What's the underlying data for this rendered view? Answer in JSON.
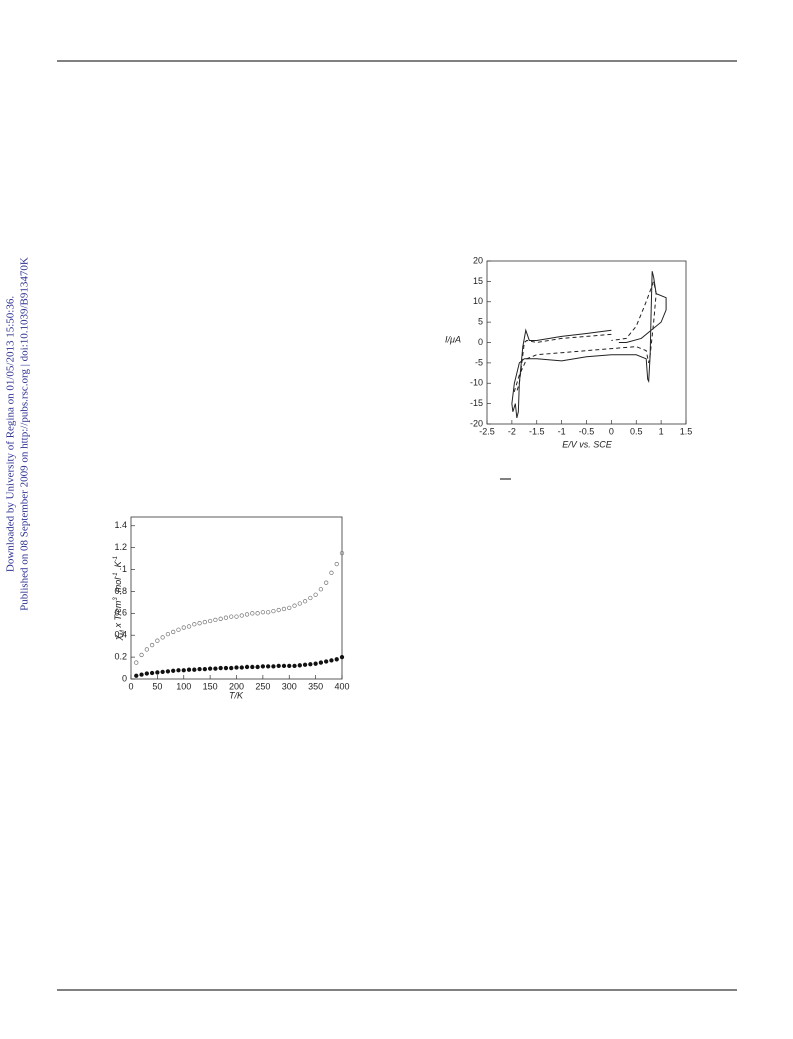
{
  "watermark": [
    "Downloaded by University of Regina on 01/05/2013 15:50:36.",
    "Published on 08 September 2009 on http://pubs.rsc.org | doi:10.1039/B913470K"
  ],
  "chart_data": [
    {
      "type": "line",
      "x_label": "E/V vs. SCE",
      "y_label": "I/μA",
      "xlim": [
        -2.5,
        1.5
      ],
      "xticks": [
        -2.5,
        -2,
        -1.5,
        -1,
        -0.5,
        0,
        0.5,
        1,
        1.5
      ],
      "ylim": [
        -20,
        20
      ],
      "yticks": [
        -20,
        -15,
        -10,
        -5,
        0,
        5,
        10,
        15,
        20
      ],
      "series": [
        {
          "color": "#222222",
          "style": "solid",
          "x": [
            0,
            -0.5,
            -1,
            -1.5,
            -1.65,
            -1.72,
            -1.78,
            -1.85,
            -1.87,
            -1.9,
            -1.93,
            -1.98,
            -2,
            -1.95,
            -1.85,
            -1.75,
            -1.5,
            -1,
            -0.5,
            0,
            0.5,
            0.7,
            0.73,
            0.75,
            0.78,
            0.8,
            0.82,
            0.85,
            0.9,
            1.1,
            1.1,
            1,
            0.8,
            0.6,
            0.3,
            0.15
          ],
          "values": [
            3,
            2.2,
            1.5,
            0.5,
            0.5,
            3,
            -1,
            -10,
            -17,
            -18.5,
            -15,
            -17,
            -15,
            -10,
            -5,
            -4,
            -4,
            -4.5,
            -3.5,
            -3,
            -3,
            -4,
            -9,
            -9.5,
            -3,
            8,
            17.5,
            16,
            12,
            11,
            8,
            5,
            3,
            1,
            0,
            0
          ]
        },
        {
          "color": "#222222",
          "style": "dashed",
          "x": [
            0,
            -1,
            -1.5,
            -1.7,
            -1.75,
            -1.8,
            -1.85,
            -1.9,
            -1.95,
            -1.85,
            -1.7,
            -1.5,
            -1,
            -0.5,
            0,
            0.5,
            0.7,
            0.75,
            0.78,
            0.85,
            0.9,
            0.85,
            0.7,
            0.5,
            0.3,
            0
          ],
          "values": [
            2,
            1,
            0,
            0.5,
            0,
            -5,
            -10,
            -12,
            -12,
            -8,
            -4,
            -3,
            -2.5,
            -2,
            -1.5,
            -1,
            -2,
            -5,
            -3,
            5,
            12,
            15,
            10,
            4,
            1,
            0.5
          ]
        }
      ]
    },
    {
      "type": "scatter",
      "x_label": "T/K",
      "y_label": [
        "χ",
        "M",
        " x T/cm",
        "3",
        " .mol",
        "-1",
        " .K",
        "-1"
      ],
      "xlim": [
        0,
        400
      ],
      "xticks": [
        0,
        50,
        100,
        150,
        200,
        250,
        300,
        350,
        400
      ],
      "ylim": [
        0,
        1.48
      ],
      "yticks": [
        0,
        0.2,
        0.4,
        0.6,
        0.8,
        1,
        1.2,
        1.4
      ],
      "x": [
        10,
        20,
        30,
        40,
        50,
        60,
        70,
        80,
        90,
        100,
        110,
        120,
        130,
        140,
        150,
        160,
        170,
        180,
        190,
        200,
        210,
        220,
        230,
        240,
        250,
        260,
        270,
        280,
        290,
        300,
        310,
        320,
        330,
        340,
        350,
        360,
        370,
        380,
        390,
        400
      ],
      "series": [
        {
          "color": "#777777",
          "marker": "open",
          "values": [
            0.15,
            0.22,
            0.27,
            0.31,
            0.35,
            0.38,
            0.41,
            0.43,
            0.45,
            0.47,
            0.48,
            0.5,
            0.51,
            0.52,
            0.53,
            0.54,
            0.55,
            0.56,
            0.57,
            0.57,
            0.58,
            0.59,
            0.6,
            0.6,
            0.61,
            0.61,
            0.62,
            0.63,
            0.64,
            0.65,
            0.67,
            0.69,
            0.71,
            0.74,
            0.77,
            0.82,
            0.88,
            0.97,
            1.05,
            1.15
          ]
        },
        {
          "color": "#111111",
          "marker": "filled",
          "values": [
            0.03,
            0.04,
            0.05,
            0.055,
            0.06,
            0.065,
            0.07,
            0.075,
            0.08,
            0.08,
            0.085,
            0.085,
            0.09,
            0.09,
            0.095,
            0.095,
            0.1,
            0.1,
            0.1,
            0.105,
            0.105,
            0.11,
            0.11,
            0.11,
            0.115,
            0.115,
            0.115,
            0.12,
            0.12,
            0.12,
            0.12,
            0.125,
            0.13,
            0.135,
            0.14,
            0.15,
            0.16,
            0.17,
            0.18,
            0.2
          ]
        }
      ]
    }
  ]
}
